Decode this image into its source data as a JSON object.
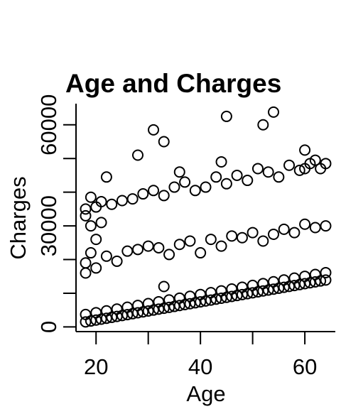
{
  "chart_data": {
    "type": "scatter",
    "title": "Age and Charges",
    "x_label": "Age",
    "y_label": "Charges",
    "color": "#000000",
    "xlim": [
      16.16,
      65.84
    ],
    "ylim": [
      -1384,
      66276
    ],
    "xticks": [
      20,
      40,
      60
    ],
    "xminor_ticks": [
      30,
      50
    ],
    "yticks": [
      0,
      30000,
      60000
    ],
    "yminor_ticks": [
      10000,
      20000,
      40000,
      50000
    ],
    "x": [
      18,
      19,
      20,
      21,
      22,
      23,
      24,
      25,
      26,
      27,
      28,
      29,
      30,
      31,
      32,
      33,
      34,
      35,
      36,
      37,
      38,
      39,
      40,
      41,
      42,
      43,
      44,
      45,
      46,
      47,
      48,
      49,
      50,
      51,
      52,
      53,
      54,
      55,
      56,
      57,
      58,
      59,
      60,
      61,
      62,
      63,
      64,
      18,
      20,
      22,
      24,
      26,
      28,
      30,
      32,
      34,
      36,
      38,
      40,
      42,
      44,
      46,
      48,
      50,
      52,
      54,
      56,
      58,
      60,
      62,
      64,
      18,
      19,
      20,
      22,
      24,
      26,
      28,
      30,
      32,
      34,
      36,
      38,
      40,
      42,
      44,
      46,
      48,
      50,
      52,
      54,
      56,
      58,
      60,
      62,
      64,
      18,
      20,
      19,
      21,
      33,
      18,
      19,
      20,
      21,
      23,
      25,
      27,
      29,
      31,
      33,
      35,
      37,
      39,
      41,
      43,
      45,
      47,
      49,
      51,
      53,
      55,
      57,
      59,
      61,
      63,
      64,
      18,
      60,
      62,
      45,
      54,
      52,
      31,
      33,
      28,
      60,
      44,
      22,
      36
    ],
    "y": [
      1500,
      1770,
      2040,
      2310,
      2580,
      2850,
      3120,
      3390,
      3660,
      3930,
      4200,
      4470,
      4740,
      5010,
      5280,
      5550,
      5820,
      6090,
      6360,
      6630,
      6900,
      7170,
      7440,
      7710,
      7980,
      8250,
      8520,
      8790,
      9060,
      9330,
      9600,
      9870,
      10140,
      10410,
      10680,
      10950,
      11220,
      11490,
      11760,
      12030,
      12300,
      12570,
      12840,
      13110,
      13380,
      13650,
      13920,
      3700,
      4240,
      4780,
      5320,
      5860,
      6400,
      6940,
      7480,
      8020,
      8560,
      9100,
      9640,
      10180,
      10720,
      11260,
      11800,
      12340,
      12880,
      13420,
      13960,
      14500,
      15040,
      15580,
      16120,
      19000,
      22000,
      17500,
      21000,
      19500,
      22500,
      23000,
      24000,
      23500,
      21500,
      24500,
      25500,
      22000,
      26000,
      24000,
      27000,
      26500,
      28000,
      25500,
      27500,
      29000,
      28000,
      30500,
      29500,
      30000,
      16000,
      26000,
      30000,
      31000,
      12000,
      35000,
      38500,
      35600,
      37200,
      36400,
      37500,
      38000,
      39500,
      40500,
      39000,
      41500,
      43000,
      40500,
      41500,
      44500,
      42500,
      45000,
      43500,
      47000,
      46000,
      44500,
      48000,
      46500,
      48500,
      47000,
      48500,
      33000,
      47000,
      49500,
      62500,
      63770,
      60000,
      58500,
      55000,
      51000,
      52500,
      49000,
      44500,
      46000
    ]
  }
}
